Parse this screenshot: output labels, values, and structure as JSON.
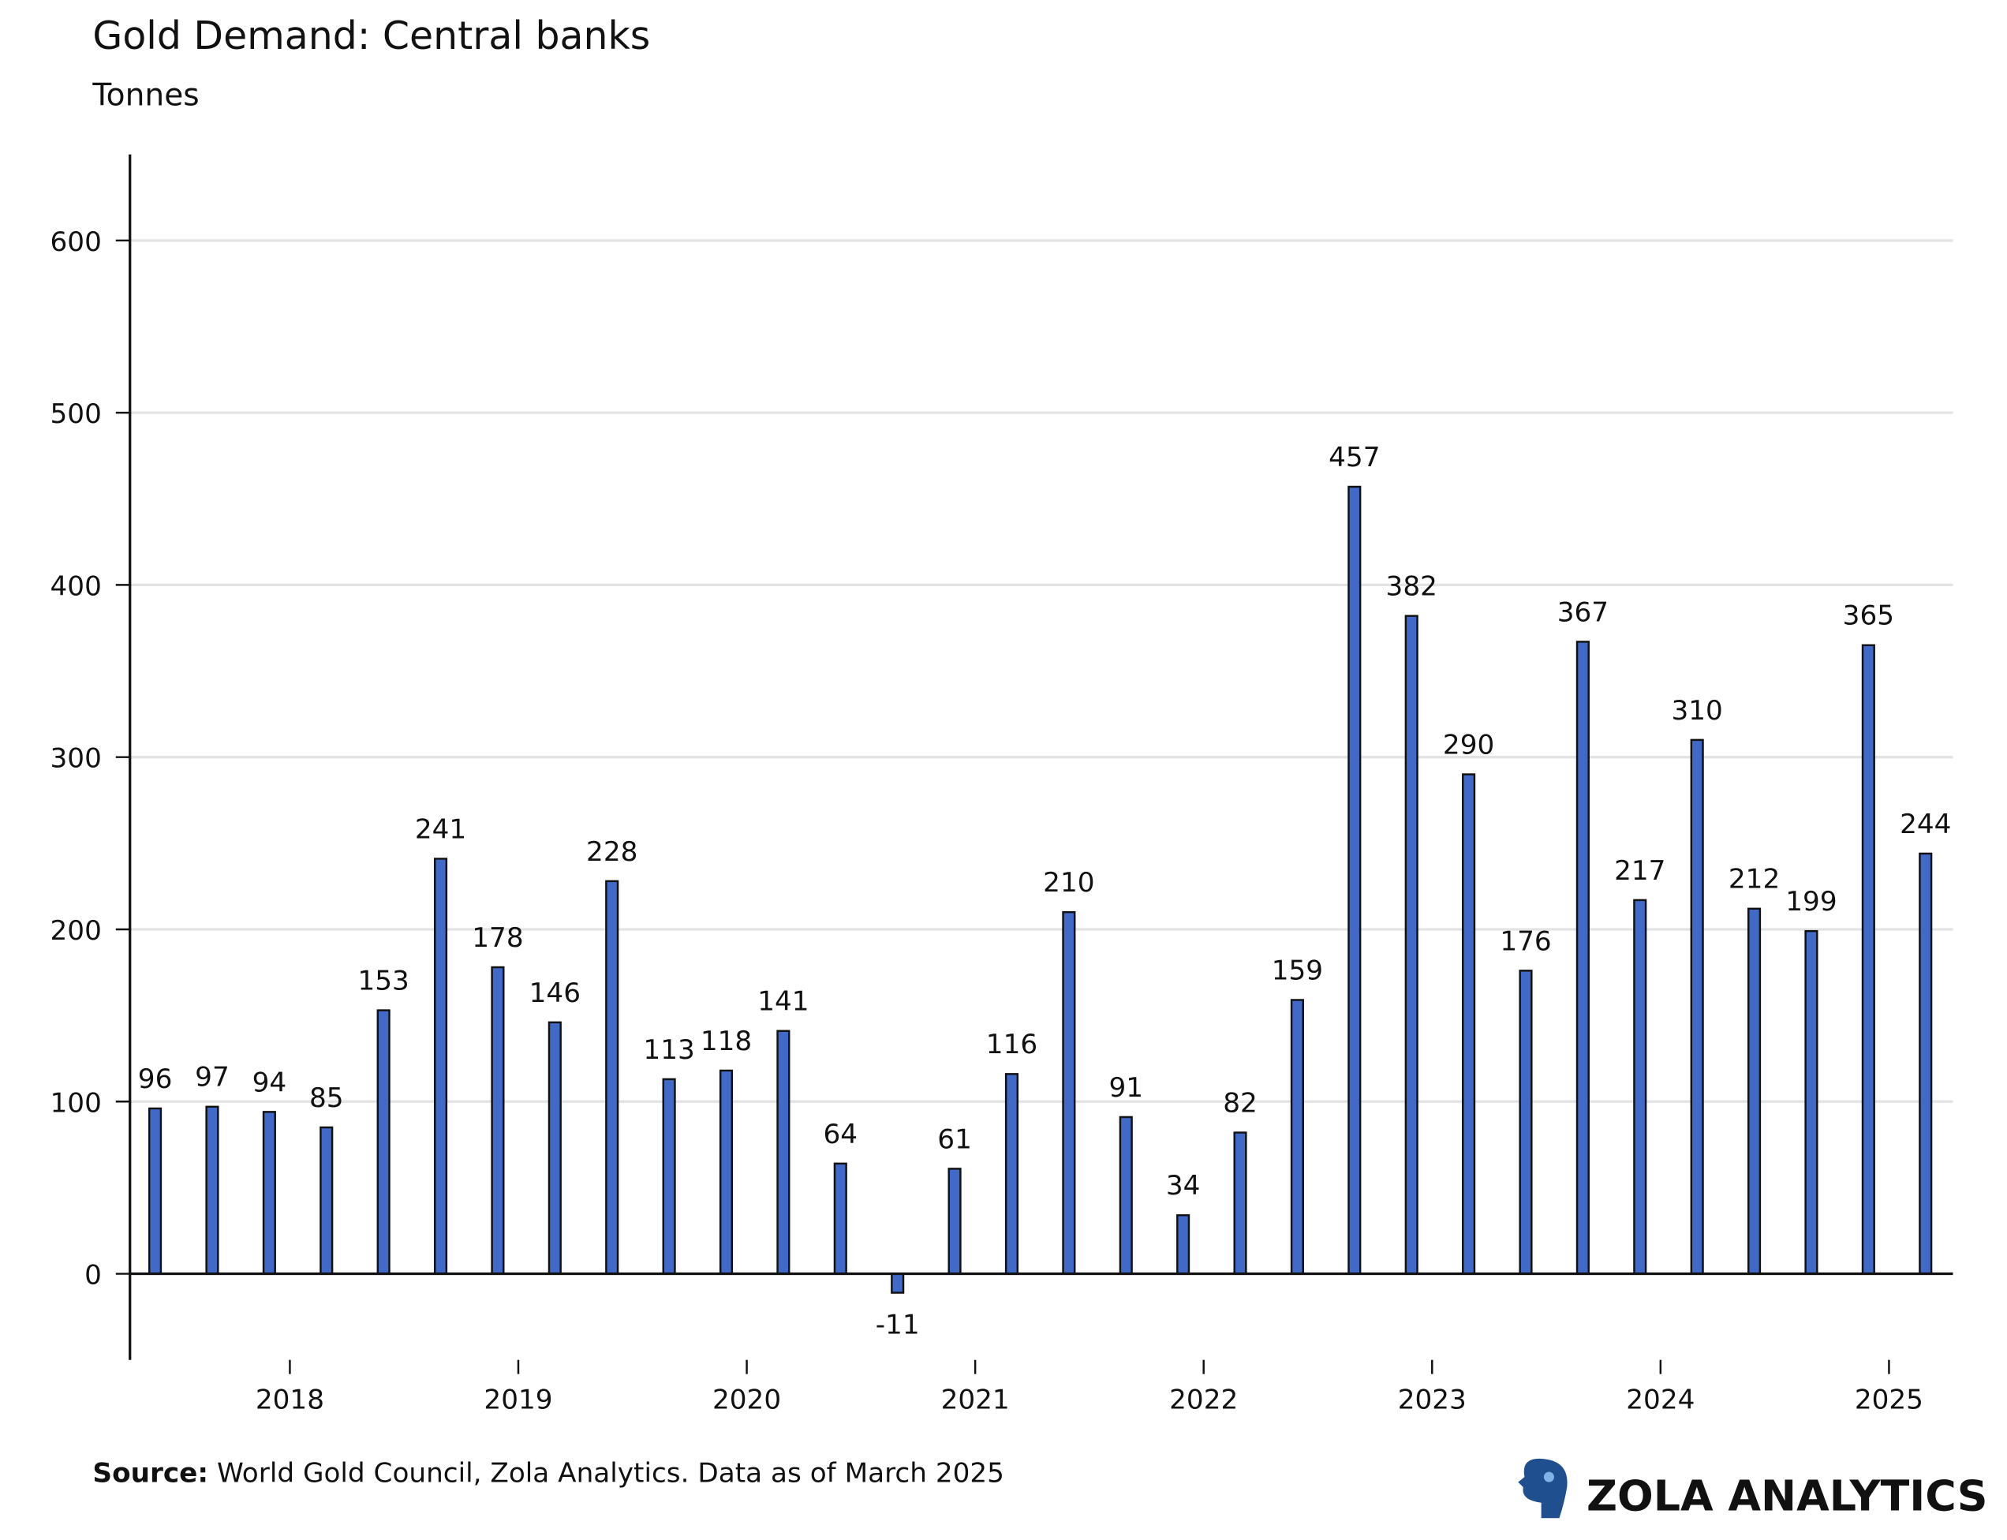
{
  "chart_data": {
    "type": "bar",
    "title": "Gold Demand: Central banks",
    "subtitle": "Tonnes",
    "source_label": "Source:",
    "source": "World Gold Council, Zola Analytics. Data as of March 2025",
    "brand": "ZOLA ANALYTICS",
    "x": [
      2017.41,
      2017.66,
      2017.91,
      2018.16,
      2018.41,
      2018.66,
      2018.91,
      2019.16,
      2019.41,
      2019.66,
      2019.91,
      2020.16,
      2020.41,
      2020.66,
      2020.91,
      2021.16,
      2021.41,
      2021.66,
      2021.91,
      2022.16,
      2022.41,
      2022.66,
      2022.91,
      2023.16,
      2023.41,
      2023.66,
      2023.91,
      2024.16,
      2024.41,
      2024.66,
      2024.91,
      2025.16
    ],
    "values": [
      96,
      97,
      94,
      85,
      153,
      241,
      178,
      146,
      228,
      113,
      118,
      141,
      64,
      -11,
      61,
      116,
      210,
      91,
      34,
      82,
      159,
      457,
      382,
      290,
      176,
      367,
      217,
      310,
      212,
      199,
      365,
      244
    ],
    "color": "#4169c8",
    "xlim": [
      2017.3,
      2025.28
    ],
    "xticks": [
      2018,
      2019,
      2020,
      2021,
      2022,
      2023,
      2024,
      2025
    ],
    "ylim": [
      -50,
      650
    ],
    "yticks": [
      0,
      100,
      200,
      300,
      400,
      500,
      600
    ],
    "grid": true
  }
}
